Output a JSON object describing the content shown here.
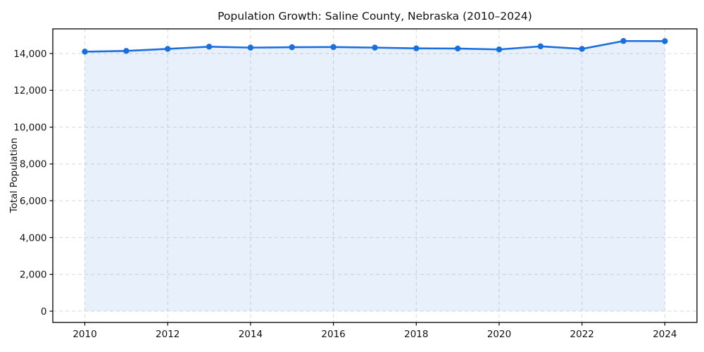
{
  "chart_data": {
    "type": "line",
    "title": "Population Growth: Saline County, Nebraska (2010–2024)",
    "xlabel": "",
    "ylabel": "Total Population",
    "x": [
      2010,
      2011,
      2012,
      2013,
      2014,
      2015,
      2016,
      2017,
      2018,
      2019,
      2020,
      2021,
      2022,
      2023,
      2024
    ],
    "series": [
      {
        "name": "Total Population",
        "values": [
          14100,
          14140,
          14250,
          14370,
          14320,
          14340,
          14350,
          14320,
          14280,
          14270,
          14220,
          14390,
          14250,
          14680,
          14670
        ]
      }
    ],
    "x_ticks": [
      2010,
      2012,
      2014,
      2016,
      2018,
      2020,
      2022,
      2024
    ],
    "x_tick_labels": [
      "2010",
      "2012",
      "2014",
      "2016",
      "2018",
      "2020",
      "2022",
      "2024"
    ],
    "y_ticks": [
      0,
      2000,
      4000,
      6000,
      8000,
      10000,
      12000,
      14000
    ],
    "y_tick_labels": [
      "0",
      "2,000",
      "4,000",
      "6,000",
      "8,000",
      "10,000",
      "12,000",
      "14,000"
    ],
    "ylim": [
      -620,
      15340
    ],
    "xlim": [
      2009.25,
      2024.75
    ],
    "grid": true,
    "grid_style": "dashed",
    "legend_position": "none",
    "marker": "circle",
    "fill_to_zero": true,
    "colors": {
      "line": "#1a6fdf",
      "marker": "#1a6fdf",
      "area_fill": "rgba(26,111,223,0.10)",
      "grid": "#d9d9d9",
      "frame": "#000000",
      "text": "#111111",
      "background": "#ffffff"
    }
  }
}
